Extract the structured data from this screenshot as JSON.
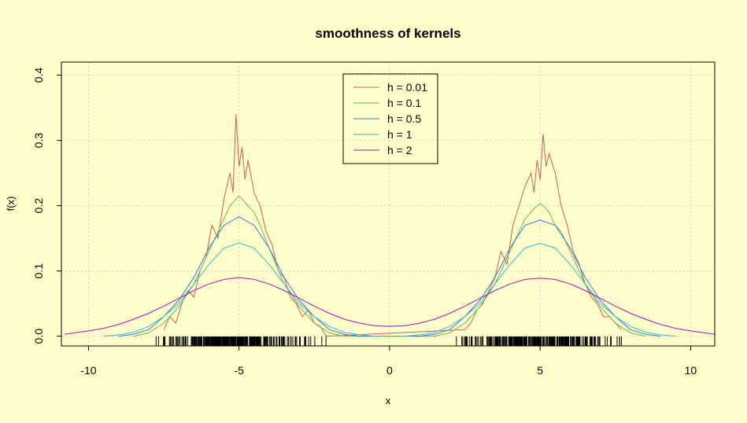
{
  "chart_data": {
    "type": "line",
    "title": "smoothness of kernels",
    "xlabel": "x",
    "ylabel": "f(x)",
    "xlim": [
      -10.9,
      10.8
    ],
    "ylim": [
      -0.015,
      0.42
    ],
    "x_ticks": [
      -10,
      -5,
      0,
      5,
      10
    ],
    "x_tick_labels": [
      "-10",
      "-5",
      "0",
      "5",
      "10"
    ],
    "y_ticks": [
      0.0,
      0.1,
      0.2,
      0.3,
      0.4
    ],
    "y_tick_labels": [
      "0.0",
      "0.1",
      "0.2",
      "0.3",
      "0.4"
    ],
    "grid": true,
    "legend_position": "top-center",
    "background_color": "#ffffcc",
    "grid_color": "#cccccc",
    "series": [
      {
        "name": "h = 0.01",
        "color": "#cd5c5c",
        "x": [
          -7.5,
          -7.3,
          -7.1,
          -6.9,
          -6.7,
          -6.5,
          -6.3,
          -6.1,
          -5.9,
          -5.7,
          -5.5,
          -5.3,
          -5.2,
          -5.1,
          -5.0,
          -4.9,
          -4.8,
          -4.7,
          -4.5,
          -4.3,
          -4.1,
          -3.9,
          -3.7,
          -3.5,
          -3.3,
          -3.1,
          -2.9,
          -2.7,
          -2.5,
          -2.3,
          -2.1,
          2.5,
          2.7,
          2.9,
          3.1,
          3.3,
          3.5,
          3.7,
          3.9,
          4.1,
          4.3,
          4.5,
          4.7,
          4.8,
          4.9,
          5.0,
          5.1,
          5.2,
          5.3,
          5.5,
          5.7,
          5.9,
          6.1,
          6.3,
          6.5,
          6.7,
          6.9,
          7.1,
          7.3,
          7.5,
          7.7
        ],
        "y": [
          0.01,
          0.03,
          0.02,
          0.05,
          0.07,
          0.06,
          0.1,
          0.12,
          0.17,
          0.15,
          0.21,
          0.25,
          0.22,
          0.34,
          0.26,
          0.29,
          0.24,
          0.27,
          0.22,
          0.2,
          0.16,
          0.14,
          0.1,
          0.09,
          0.06,
          0.05,
          0.03,
          0.04,
          0.02,
          0.015,
          0.0,
          0.01,
          0.02,
          0.04,
          0.05,
          0.07,
          0.09,
          0.13,
          0.11,
          0.17,
          0.2,
          0.23,
          0.25,
          0.22,
          0.27,
          0.24,
          0.31,
          0.26,
          0.28,
          0.25,
          0.2,
          0.17,
          0.13,
          0.11,
          0.08,
          0.06,
          0.05,
          0.03,
          0.03,
          0.02,
          0.01
        ]
      },
      {
        "name": "h = 0.1",
        "color": "#66bb44",
        "x": [
          -8.5,
          -8.0,
          -7.5,
          -7.0,
          -6.5,
          -6.0,
          -5.7,
          -5.5,
          -5.3,
          -5.1,
          -5.0,
          -4.9,
          -4.7,
          -4.5,
          -4.3,
          -4.0,
          -3.5,
          -3.0,
          -2.5,
          -2.0,
          -1.5,
          1.5,
          2.0,
          2.5,
          3.0,
          3.5,
          4.0,
          4.3,
          4.5,
          4.7,
          4.9,
          5.0,
          5.1,
          5.3,
          5.5,
          5.7,
          6.0,
          6.5,
          7.0,
          7.5,
          8.0,
          8.5
        ],
        "y": [
          0.0,
          0.005,
          0.02,
          0.045,
          0.08,
          0.13,
          0.16,
          0.18,
          0.2,
          0.21,
          0.215,
          0.21,
          0.2,
          0.19,
          0.17,
          0.135,
          0.08,
          0.045,
          0.02,
          0.005,
          0.0,
          0.0,
          0.005,
          0.02,
          0.045,
          0.08,
          0.13,
          0.16,
          0.18,
          0.19,
          0.2,
          0.203,
          0.2,
          0.19,
          0.17,
          0.16,
          0.13,
          0.08,
          0.045,
          0.02,
          0.005,
          0.0
        ]
      },
      {
        "name": "h = 0.5",
        "color": "#3377dd",
        "x": [
          -9.0,
          -8.5,
          -8.0,
          -7.5,
          -7.0,
          -6.5,
          -6.0,
          -5.5,
          -5.0,
          -4.5,
          -4.0,
          -3.5,
          -3.0,
          -2.5,
          -2.0,
          -1.5,
          -1.0,
          1.0,
          1.5,
          2.0,
          2.5,
          3.0,
          3.5,
          4.0,
          4.5,
          5.0,
          5.5,
          6.0,
          6.5,
          7.0,
          7.5,
          8.0,
          8.5,
          9.0
        ],
        "y": [
          0.0,
          0.003,
          0.01,
          0.03,
          0.055,
          0.09,
          0.135,
          0.17,
          0.183,
          0.17,
          0.135,
          0.09,
          0.055,
          0.03,
          0.01,
          0.003,
          0.0,
          0.0,
          0.003,
          0.01,
          0.03,
          0.055,
          0.09,
          0.135,
          0.17,
          0.178,
          0.17,
          0.135,
          0.09,
          0.055,
          0.03,
          0.01,
          0.003,
          0.0
        ]
      },
      {
        "name": "h = 1",
        "color": "#33bbcc",
        "x": [
          -9.5,
          -9.0,
          -8.5,
          -8.0,
          -7.5,
          -7.0,
          -6.5,
          -6.0,
          -5.5,
          -5.0,
          -4.5,
          -4.0,
          -3.5,
          -3.0,
          -2.5,
          -2.0,
          -1.5,
          -1.0,
          -0.5,
          0.0,
          0.5,
          1.0,
          1.5,
          2.0,
          2.5,
          3.0,
          3.5,
          4.0,
          4.5,
          5.0,
          5.5,
          6.0,
          6.5,
          7.0,
          7.5,
          8.0,
          8.5,
          9.0,
          9.5
        ],
        "y": [
          0.0,
          0.002,
          0.006,
          0.015,
          0.03,
          0.05,
          0.08,
          0.11,
          0.135,
          0.143,
          0.135,
          0.11,
          0.08,
          0.05,
          0.03,
          0.015,
          0.006,
          0.002,
          0.0,
          0.0,
          0.0,
          0.002,
          0.006,
          0.015,
          0.03,
          0.05,
          0.08,
          0.11,
          0.135,
          0.142,
          0.135,
          0.11,
          0.08,
          0.05,
          0.03,
          0.015,
          0.006,
          0.002,
          0.0
        ]
      },
      {
        "name": "h = 2",
        "color": "#aa11bb",
        "x": [
          -10.8,
          -10.0,
          -9.5,
          -9.0,
          -8.5,
          -8.0,
          -7.5,
          -7.0,
          -6.5,
          -6.0,
          -5.5,
          -5.0,
          -4.5,
          -4.0,
          -3.5,
          -3.0,
          -2.5,
          -2.0,
          -1.5,
          -1.0,
          -0.5,
          0.0,
          0.5,
          1.0,
          1.5,
          2.0,
          2.5,
          3.0,
          3.5,
          4.0,
          4.5,
          5.0,
          5.5,
          6.0,
          6.5,
          7.0,
          7.5,
          8.0,
          8.5,
          9.0,
          9.5,
          10.0,
          10.8
        ],
        "y": [
          0.003,
          0.008,
          0.012,
          0.018,
          0.026,
          0.035,
          0.046,
          0.058,
          0.07,
          0.08,
          0.087,
          0.09,
          0.087,
          0.08,
          0.07,
          0.058,
          0.046,
          0.035,
          0.026,
          0.02,
          0.016,
          0.015,
          0.016,
          0.02,
          0.026,
          0.035,
          0.046,
          0.058,
          0.07,
          0.08,
          0.087,
          0.089,
          0.087,
          0.08,
          0.07,
          0.058,
          0.046,
          0.035,
          0.026,
          0.018,
          0.012,
          0.008,
          0.003
        ]
      }
    ],
    "rug_clusters": [
      {
        "center": -5.0,
        "spread": 1.15,
        "count": 260
      },
      {
        "center": 5.0,
        "spread": 1.15,
        "count": 260
      }
    ]
  }
}
